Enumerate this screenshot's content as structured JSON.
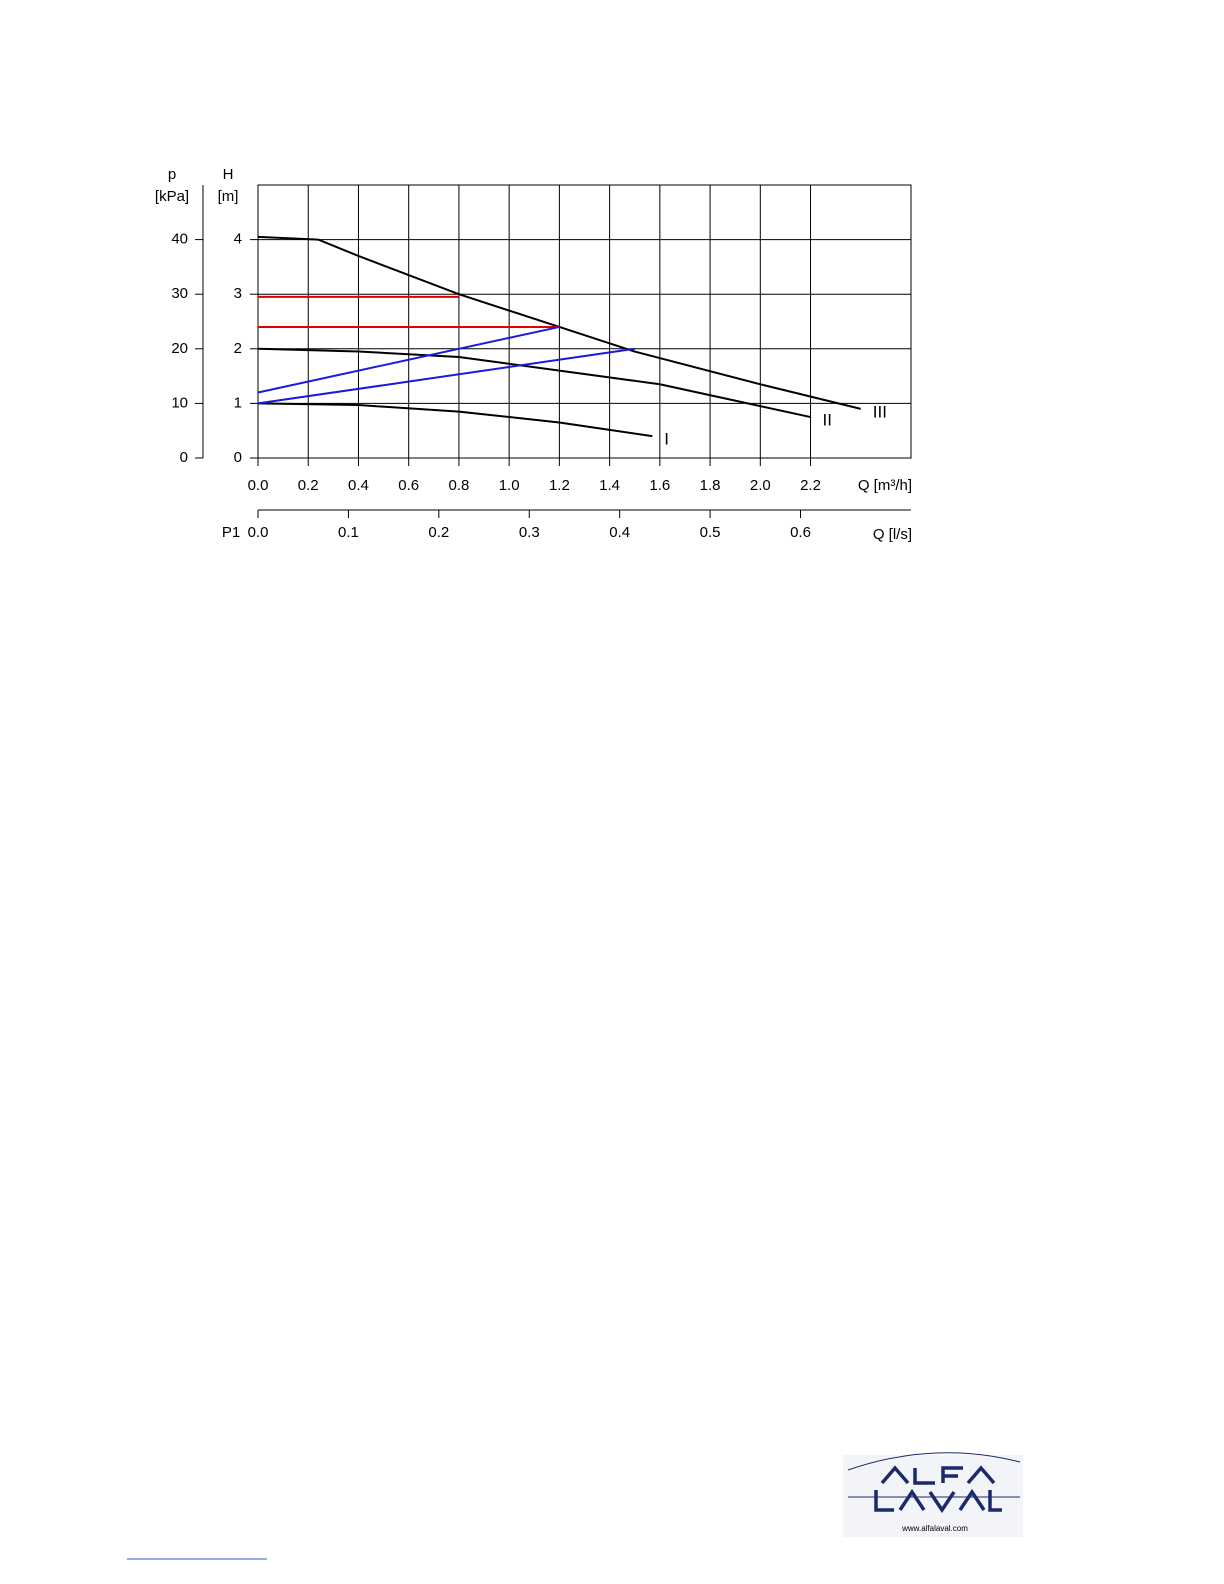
{
  "chart_data": {
    "type": "line",
    "left_axis_label_top": "p",
    "left_axis_label_unit": "[kPa]",
    "y_label_top": "H",
    "y_label_unit": "[m]",
    "x_label": "Q [m³/h]",
    "x2_label": "Q [l/s]",
    "x2_prefix": "P1",
    "xlim": [
      0,
      2.6
    ],
    "xticks": [
      {
        "value": 0,
        "label": "0.0"
      },
      0.2,
      0.4,
      0.6,
      0.8,
      {
        "value": 1,
        "label": "1.0"
      },
      1.2,
      1.4,
      1.6,
      1.8,
      {
        "value": 2,
        "label": "2.0"
      },
      2.2
    ],
    "x2lim": [
      0,
      0.7222
    ],
    "x2ticks": [
      {
        "value": 0,
        "label": "0.0"
      },
      0.1,
      0.2,
      0.3,
      0.4,
      0.5,
      0.6
    ],
    "ylim": [
      0,
      5
    ],
    "yticks": [
      0,
      1,
      2,
      3,
      4
    ],
    "y2lim": [
      0,
      50
    ],
    "y2ticks": [
      0,
      10,
      20,
      30,
      40
    ],
    "grid": true,
    "series": [
      {
        "name": "III",
        "color": "#000000",
        "x": [
          0,
          0.24,
          0.4,
          0.8,
          1.2,
          1.5,
          2.0,
          2.4
        ],
        "values": [
          4.05,
          4.0,
          3.7,
          3.0,
          2.4,
          1.95,
          1.35,
          0.9
        ]
      },
      {
        "name": "II",
        "color": "#000000",
        "x": [
          0,
          0.4,
          0.8,
          1.2,
          1.6,
          2.0,
          2.2
        ],
        "values": [
          2.0,
          1.95,
          1.85,
          1.6,
          1.35,
          0.95,
          0.75
        ]
      },
      {
        "name": "I",
        "color": "#000000",
        "x": [
          0,
          0.4,
          0.8,
          1.2,
          1.57
        ],
        "values": [
          1.0,
          0.97,
          0.85,
          0.65,
          0.4
        ]
      },
      {
        "color": "#e00000",
        "x": [
          0,
          0.8
        ],
        "values": [
          2.95,
          2.95
        ]
      },
      {
        "color": "#e00000",
        "x": [
          0,
          1.2
        ],
        "values": [
          2.4,
          2.4
        ]
      },
      {
        "color": "#1a1adc",
        "x": [
          0,
          1.2
        ],
        "values": [
          1.2,
          2.4
        ]
      },
      {
        "color": "#1a1adc",
        "x": [
          0,
          1.5
        ],
        "values": [
          1.0,
          2.0
        ]
      }
    ]
  },
  "footer": {
    "website": "www.alfalaval.com"
  }
}
